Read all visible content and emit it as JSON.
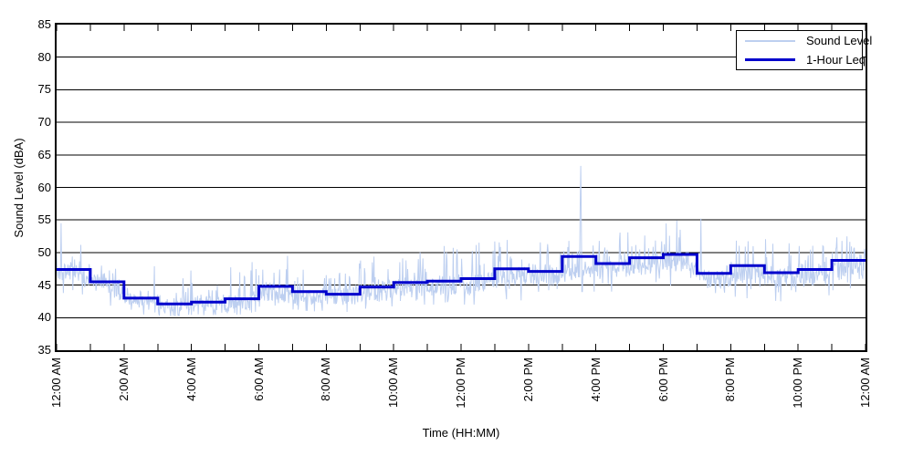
{
  "chart_data": {
    "type": "line",
    "title": "",
    "xlabel": "Time (HH:MM)",
    "ylabel": "Sound Level (dBA)",
    "ylim": [
      35,
      85
    ],
    "xlim_hours": [
      0,
      24
    ],
    "y_ticks": [
      35,
      40,
      45,
      50,
      55,
      60,
      65,
      70,
      75,
      80,
      85
    ],
    "x_tick_hours": [
      0,
      2,
      4,
      6,
      8,
      10,
      12,
      14,
      16,
      18,
      20,
      22,
      24
    ],
    "x_tick_labels": [
      "12:00 AM",
      "2:00 AM",
      "4:00 AM",
      "6:00 AM",
      "8:00 AM",
      "10:00 AM",
      "12:00 PM",
      "2:00 PM",
      "4:00 PM",
      "6:00 PM",
      "8:00 PM",
      "10:00 PM",
      "12:00 AM"
    ],
    "grid": "horizontal solid black lines every 5 dBA",
    "legend_position": "top-right inside plot",
    "series": [
      {
        "name": "Sound Level",
        "style": "noisy minute-resolution trace",
        "color": "#bdcff0",
        "line_width": 1,
        "minute_data_envelope_hourly": [
          {
            "hour": 0,
            "typ_dBA": 46.8,
            "min_dBA": 43.5,
            "max_dBA": 51.5
          },
          {
            "hour": 1,
            "typ_dBA": 44.6,
            "min_dBA": 41.5,
            "max_dBA": 50.0
          },
          {
            "hour": 2,
            "typ_dBA": 42.6,
            "min_dBA": 40.5,
            "max_dBA": 48.5
          },
          {
            "hour": 3,
            "typ_dBA": 41.6,
            "min_dBA": 40.2,
            "max_dBA": 47.0
          },
          {
            "hour": 4,
            "typ_dBA": 41.9,
            "min_dBA": 40.4,
            "max_dBA": 47.5
          },
          {
            "hour": 5,
            "typ_dBA": 42.3,
            "min_dBA": 40.5,
            "max_dBA": 50.0
          },
          {
            "hour": 6,
            "typ_dBA": 43.6,
            "min_dBA": 41.5,
            "max_dBA": 50.0
          },
          {
            "hour": 7,
            "typ_dBA": 43.3,
            "min_dBA": 41.0,
            "max_dBA": 48.5
          },
          {
            "hour": 8,
            "typ_dBA": 43.1,
            "min_dBA": 40.8,
            "max_dBA": 48.0
          },
          {
            "hour": 9,
            "typ_dBA": 43.9,
            "min_dBA": 41.5,
            "max_dBA": 49.5
          },
          {
            "hour": 10,
            "typ_dBA": 44.6,
            "min_dBA": 42.0,
            "max_dBA": 50.5
          },
          {
            "hour": 11,
            "typ_dBA": 44.9,
            "min_dBA": 42.0,
            "max_dBA": 51.0
          },
          {
            "hour": 12,
            "typ_dBA": 45.2,
            "min_dBA": 42.0,
            "max_dBA": 51.5
          },
          {
            "hour": 13,
            "typ_dBA": 46.4,
            "min_dBA": 42.5,
            "max_dBA": 52.0
          },
          {
            "hour": 14,
            "typ_dBA": 46.3,
            "min_dBA": 43.0,
            "max_dBA": 51.5
          },
          {
            "hour": 15,
            "typ_dBA": 47.3,
            "min_dBA": 44.0,
            "max_dBA": 53.0
          },
          {
            "hour": 16,
            "typ_dBA": 47.4,
            "min_dBA": 44.0,
            "max_dBA": 53.5
          },
          {
            "hour": 17,
            "typ_dBA": 48.2,
            "min_dBA": 44.0,
            "max_dBA": 54.0
          },
          {
            "hour": 18,
            "typ_dBA": 48.4,
            "min_dBA": 44.0,
            "max_dBA": 55.0
          },
          {
            "hour": 19,
            "typ_dBA": 45.7,
            "min_dBA": 42.0,
            "max_dBA": 52.0
          },
          {
            "hour": 20,
            "typ_dBA": 46.9,
            "min_dBA": 43.0,
            "max_dBA": 52.5
          },
          {
            "hour": 21,
            "typ_dBA": 46.0,
            "min_dBA": 42.5,
            "max_dBA": 52.0
          },
          {
            "hour": 22,
            "typ_dBA": 46.3,
            "min_dBA": 43.0,
            "max_dBA": 52.0
          },
          {
            "hour": 23,
            "typ_dBA": 47.6,
            "min_dBA": 44.0,
            "max_dBA": 52.5
          }
        ],
        "spikes": [
          {
            "hour": 0.13,
            "value_dBA": 54.5
          },
          {
            "hour": 15.55,
            "value_dBA": 63.3
          },
          {
            "hour": 19.12,
            "value_dBA": 55.2
          }
        ]
      },
      {
        "name": "1-Hour Leq",
        "style": "hourly step line",
        "color": "#0000cc",
        "line_width": 3,
        "values_dBA": [
          47.4,
          45.5,
          43.0,
          42.1,
          42.4,
          42.9,
          44.8,
          44.0,
          43.6,
          44.7,
          45.4,
          45.6,
          46.0,
          47.5,
          47.1,
          49.4,
          48.3,
          49.2,
          49.7,
          46.8,
          48.0,
          46.9,
          47.4,
          48.8
        ]
      }
    ]
  }
}
